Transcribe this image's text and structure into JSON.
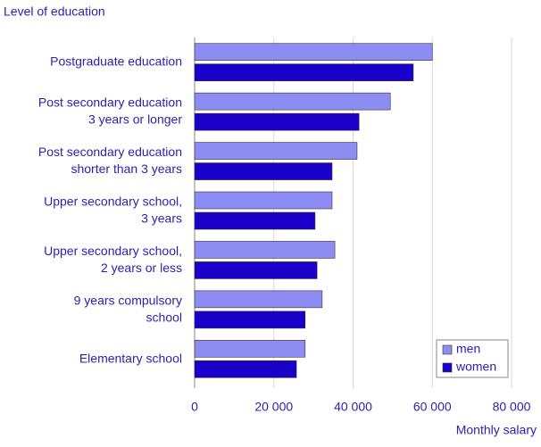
{
  "chart_data": {
    "type": "hbar",
    "title": "Level of education",
    "x_label": "Monthly salary",
    "categories": [
      "Postgraduate education",
      "Post secondary education\n3 years or longer",
      "Post secondary education\nshorter than 3 years",
      "Upper secondary school,\n3 years",
      "Upper secondary school,\n2 years or less",
      "9 years compulsory\nschool",
      "Elementary school"
    ],
    "series": [
      {
        "name": "men",
        "color": "#8c8cf2",
        "values": [
          60000,
          49400,
          41000,
          34700,
          35400,
          32200,
          27900
        ]
      },
      {
        "name": "women",
        "color": "#1a00c8",
        "values": [
          55200,
          41500,
          34700,
          30400,
          30900,
          27900,
          25700
        ]
      }
    ],
    "xlim": [
      0,
      80000
    ],
    "xticks": [
      0,
      {
        "value": 20000,
        "label": "20 000"
      },
      {
        "value": 40000,
        "label": "40 000"
      },
      {
        "value": 60000,
        "label": "60 000"
      },
      {
        "value": 80000,
        "label": "80 000"
      }
    ],
    "grid": true,
    "legend": "bottom-right"
  }
}
